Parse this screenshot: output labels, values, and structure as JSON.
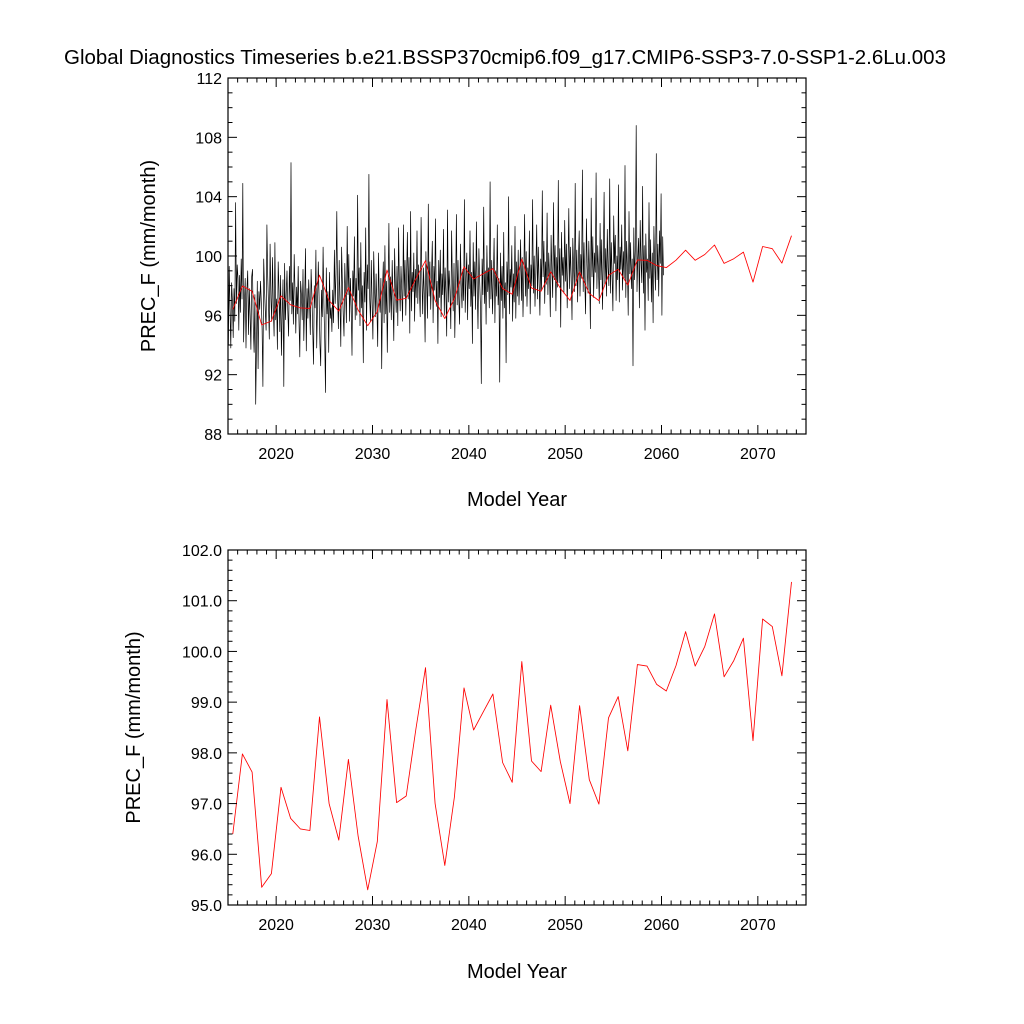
{
  "figure": {
    "title": "Global Diagnostics Timeseries b.e21.BSSP370cmip6.f09_g17.CMIP6-SSP3-7.0-SSP1-2.6Lu.003"
  },
  "chart_data": [
    {
      "type": "line",
      "xlabel": "Model Year",
      "ylabel": "PREC_F (mm/month)",
      "xlim": [
        2015,
        2075
      ],
      "ylim": [
        88,
        112
      ],
      "x_ticks": [
        2020,
        2030,
        2040,
        2050,
        2060,
        2070
      ],
      "y_ticks": [
        88,
        92,
        96,
        100,
        104,
        108,
        112
      ],
      "y_tick_labels": [
        "88",
        "92",
        "96",
        "100",
        "104",
        "108",
        "112"
      ],
      "grid": false,
      "series": [
        {
          "color": "#000000",
          "resolution": "monthly",
          "x_start": 2015.04,
          "x_step": 0.0833333,
          "values": [
            94.0,
            99.3,
            96.5,
            93.8,
            98.2,
            97.0,
            94.5,
            97.8,
            95.6,
            103.6,
            96.8,
            99.4,
            98.5,
            95.0,
            98.7,
            96.2,
            99.8,
            97.1,
            104.9,
            94.2,
            96.8,
            98.5,
            93.8,
            97.5,
            99.0,
            94.7,
            97.8,
            96.0,
            93.7,
            98.6,
            99.1,
            95.2,
            93.5,
            97.4,
            90.0,
            94.0,
            98.3,
            92.4,
            97.6,
            96.4,
            98.3,
            96.9,
            95.1,
            91.2,
            99.8,
            97.8,
            96.3,
            95.0,
            102.1,
            98.6,
            96.8,
            94.4,
            100.8,
            97.2,
            95.6,
            99.9,
            96.5,
            94.6,
            100.9,
            95.7,
            97.1,
            93.7,
            99.6,
            97.7,
            94.9,
            98.7,
            93.3,
            96.0,
            98.4,
            91.2,
            99.5,
            95.7,
            97.4,
            99.0,
            96.3,
            94.6,
            99.3,
            97.0,
            106.3,
            96.1,
            98.2,
            95.4,
            100.1,
            97.6,
            94.8,
            97.9,
            96.1,
            99.3,
            95.6,
            93.2,
            98.3,
            97.4,
            95.7,
            99.1,
            94.3,
            96.8,
            100.5,
            93.6,
            97.8,
            95.8,
            98.4,
            96.9,
            94.7,
            99.1,
            97.4,
            95.1,
            92.7,
            98.0,
            96.5,
            100.4,
            93.8,
            96.7,
            99.6,
            97.2,
            94.1,
            92.6,
            97.7,
            95.9,
            100.6,
            96.8,
            94.4,
            90.8,
            99.2,
            96.1,
            97.6,
            93.5,
            98.9,
            95.8,
            96.5,
            94.9,
            97.7,
            95.5,
            100.4,
            96.8,
            98.8,
            103.0,
            97.2,
            95.1,
            99.7,
            96.9,
            93.9,
            100.6,
            98.1,
            96.1,
            94.6,
            99.5,
            97.5,
            95.5,
            102.0,
            97.4,
            100.1,
            95.6,
            98.5,
            96.6,
            93.3,
            99.0,
            97.3,
            101.3,
            95.7,
            98.5,
            96.0,
            104.1,
            97.7,
            99.2,
            95.3,
            100.9,
            96.5,
            98.0,
            92.8,
            98.9,
            96.9,
            101.9,
            95.0,
            99.4,
            97.8,
            105.5,
            97.1,
            95.6,
            99.7,
            96.8,
            94.4,
            100.3,
            97.9,
            95.9,
            98.8,
            96.6,
            93.9,
            100.2,
            97.1,
            96.2,
            98.5,
            92.4,
            97.7,
            99.6,
            95.5,
            100.7,
            96.1,
            98.3,
            93.5,
            97.6,
            102.2,
            96.2,
            98.6,
            95.7,
            99.7,
            96.9,
            94.3,
            100.5,
            97.8,
            96.2,
            99.3,
            95.3,
            101.9,
            98.0,
            96.3,
            99.3,
            97.5,
            95.6,
            102.1,
            97.3,
            99.7,
            96.0,
            98.8,
            101.6,
            97.1,
            99.9,
            94.8,
            103.0,
            96.3,
            98.9,
            97.6,
            100.2,
            95.6,
            99.1,
            97.2,
            101.7,
            96.8,
            99.4,
            97.7,
            95.9,
            102.6,
            98.5,
            96.1,
            99.2,
            97.5,
            94.2,
            100.3,
            98.0,
            95.8,
            103.5,
            97.3,
            99.6,
            96.4,
            98.7,
            101.0,
            95.5,
            99.3,
            97.7,
            102.5,
            96.6,
            98.3,
            94.1,
            99.7,
            97.2,
            100.4,
            95.9,
            98.8,
            97.4,
            101.8,
            96.0,
            99.2,
            97.5,
            94.6,
            103.1,
            96.9,
            99.0,
            97.6,
            95.1,
            101.7,
            98.1,
            96.3,
            99.5,
            94.5,
            97.8,
            102.8,
            96.7,
            99.7,
            97.1,
            95.4,
            100.8,
            98.1,
            96.5,
            99.1,
            97.0,
            103.8,
            96.2,
            98.6,
            100.2,
            95.7,
            99.4,
            97.8,
            101.7,
            96.6,
            98.9,
            94.1,
            100.9,
            97.3,
            99.6,
            96.4,
            102.3,
            97.9,
            95.1,
            100.5,
            98.2,
            96.6,
            91.4,
            99.8,
            97.4,
            103.3,
            96.8,
            99.0,
            95.4,
            100.7,
            97.6,
            99.2,
            96.5,
            105.0,
            97.1,
            99.7,
            96.1,
            98.4,
            101.2,
            95.5,
            99.0,
            97.3,
            102.1,
            96.7,
            98.5,
            91.5,
            100.2,
            97.0,
            99.3,
            95.8,
            101.6,
            96.5,
            98.2,
            92.8,
            99.6,
            97.4,
            104.0,
            96.1,
            99.1,
            97.9,
            100.7,
            95.6,
            98.8,
            96.9,
            102.0,
            95.8,
            99.6,
            97.3,
            100.4,
            96.7,
            98.8,
            101.1,
            97.0,
            99.9,
            95.9,
            98.6,
            102.8,
            97.3,
            100.3,
            96.6,
            99.2,
            97.8,
            101.7,
            96.1,
            99.4,
            98.0,
            103.8,
            97.5,
            100.0,
            96.6,
            98.9,
            102.1,
            97.1,
            100.6,
            98.3,
            96.0,
            99.8,
            97.7,
            104.4,
            98.6,
            101.0,
            96.8,
            99.6,
            98.1,
            102.9,
            97.4,
            100.2,
            98.8,
            95.9,
            101.4,
            99.0,
            97.2,
            103.6,
            98.4,
            100.7,
            96.3,
            99.9,
            97.9,
            105.1,
            98.2,
            100.5,
            95.2,
            101.6,
            98.7,
            99.9,
            97.5,
            102.4,
            98.3,
            100.8,
            96.5,
            99.3,
            103.2,
            97.8,
            100.6,
            98.6,
            95.7,
            101.2,
            99.1,
            97.6,
            104.9,
            98.0,
            100.4,
            96.9,
            99.7,
            101.7,
            97.3,
            100.1,
            98.5,
            105.8,
            97.6,
            100.9,
            98.2,
            96.1,
            102.5,
            99.4,
            97.5,
            101.0,
            98.7,
            95.1,
            103.9,
            98.6,
            101.3,
            97.2,
            100.2,
            98.9,
            105.6,
            97.8,
            100.7,
            99.0,
            96.8,
            102.2,
            98.4,
            101.1,
            96.4,
            99.6,
            104.3,
            98.1,
            100.5,
            97.3,
            101.8,
            99.2,
            98.0,
            105.2,
            97.5,
            100.9,
            98.7,
            96.3,
            102.7,
            99.5,
            101.4,
            97.0,
            100.0,
            98.4,
            104.8,
            96.9,
            100.6,
            99.1,
            102.1,
            97.7,
            100.3,
            98.5,
            106.1,
            97.2,
            101.0,
            99.3,
            96.0,
            103.0,
            98.8,
            100.9,
            97.8,
            99.8,
            92.6,
            101.9,
            98.4,
            100.5,
            108.8,
            97.6,
            99.9,
            101.2,
            96.5,
            102.4,
            99.6,
            98.2,
            104.7,
            97.5,
            100.7,
            95.0,
            101.5,
            98.9,
            99.8,
            97.0,
            103.6,
            98.5,
            101.1,
            96.9,
            100.2,
            95.5,
            102.0,
            99.3,
            97.7,
            106.9,
            98.4,
            100.8,
            97.3,
            101.7,
            99.5,
            104.2,
            96.0,
            101.3,
            98.7
          ]
        },
        {
          "color": "#ff0000",
          "resolution": "annual",
          "x": [
            2015.5,
            2016.5,
            2017.5,
            2018.5,
            2019.5,
            2020.5,
            2021.5,
            2022.5,
            2023.5,
            2024.5,
            2025.5,
            2026.5,
            2027.5,
            2028.5,
            2029.5,
            2030.5,
            2031.5,
            2032.5,
            2033.5,
            2034.5,
            2035.5,
            2036.5,
            2037.5,
            2038.5,
            2039.5,
            2040.5,
            2041.5,
            2042.5,
            2043.5,
            2044.5,
            2045.5,
            2046.5,
            2047.5,
            2048.5,
            2049.5,
            2050.5,
            2051.5,
            2052.5,
            2053.5,
            2054.5,
            2055.5,
            2056.5,
            2057.5,
            2058.5,
            2059.5,
            2060.5,
            2061.5,
            2062.5,
            2063.5,
            2064.5,
            2065.5,
            2066.5,
            2067.5,
            2068.5,
            2069.5,
            2070.5,
            2071.5,
            2072.5,
            2073.5
          ],
          "values": [
            96.4,
            97.98,
            97.62,
            95.35,
            95.62,
            97.32,
            96.71,
            96.5,
            96.47,
            98.71,
            97.0,
            96.28,
            97.87,
            96.36,
            95.3,
            96.25,
            99.05,
            97.02,
            97.15,
            98.47,
            99.68,
            97.0,
            95.78,
            97.13,
            99.28,
            98.45,
            98.81,
            99.16,
            97.81,
            97.42,
            99.8,
            97.84,
            97.63,
            98.94,
            97.83,
            97.0,
            98.93,
            97.47,
            96.99,
            98.69,
            99.11,
            98.04,
            99.74,
            99.71,
            99.35,
            99.22,
            99.72,
            100.39,
            99.71,
            100.1,
            100.74,
            99.5,
            99.82,
            100.26,
            98.24,
            100.64,
            100.49,
            99.52,
            101.37
          ]
        }
      ]
    },
    {
      "type": "line",
      "xlabel": "Model Year",
      "ylabel": "PREC_F (mm/month)",
      "xlim": [
        2015,
        2075
      ],
      "ylim": [
        95,
        102
      ],
      "x_ticks": [
        2020,
        2030,
        2040,
        2050,
        2060,
        2070
      ],
      "y_ticks": [
        95,
        96,
        97,
        98,
        99,
        100,
        101,
        102
      ],
      "y_tick_labels": [
        "95.0",
        "96.0",
        "97.0",
        "98.0",
        "99.0",
        "100.0",
        "101.0",
        "102.0"
      ],
      "grid": false,
      "series": [
        {
          "color": "#ff0000",
          "resolution": "annual",
          "x": [
            2015.5,
            2016.5,
            2017.5,
            2018.5,
            2019.5,
            2020.5,
            2021.5,
            2022.5,
            2023.5,
            2024.5,
            2025.5,
            2026.5,
            2027.5,
            2028.5,
            2029.5,
            2030.5,
            2031.5,
            2032.5,
            2033.5,
            2034.5,
            2035.5,
            2036.5,
            2037.5,
            2038.5,
            2039.5,
            2040.5,
            2041.5,
            2042.5,
            2043.5,
            2044.5,
            2045.5,
            2046.5,
            2047.5,
            2048.5,
            2049.5,
            2050.5,
            2051.5,
            2052.5,
            2053.5,
            2054.5,
            2055.5,
            2056.5,
            2057.5,
            2058.5,
            2059.5,
            2060.5,
            2061.5,
            2062.5,
            2063.5,
            2064.5,
            2065.5,
            2066.5,
            2067.5,
            2068.5,
            2069.5,
            2070.5,
            2071.5,
            2072.5,
            2073.5
          ],
          "values": [
            96.4,
            97.98,
            97.62,
            95.35,
            95.62,
            97.32,
            96.71,
            96.5,
            96.47,
            98.71,
            97.0,
            96.28,
            97.87,
            96.36,
            95.3,
            96.25,
            99.05,
            97.02,
            97.15,
            98.47,
            99.68,
            97.0,
            95.78,
            97.13,
            99.28,
            98.45,
            98.81,
            99.16,
            97.81,
            97.42,
            99.8,
            97.84,
            97.63,
            98.94,
            97.83,
            97.0,
            98.93,
            97.47,
            96.99,
            98.69,
            99.11,
            98.04,
            99.74,
            99.71,
            99.35,
            99.22,
            99.72,
            100.39,
            99.71,
            100.1,
            100.74,
            99.5,
            99.82,
            100.26,
            98.24,
            100.64,
            100.49,
            99.52,
            101.37
          ]
        }
      ]
    }
  ]
}
